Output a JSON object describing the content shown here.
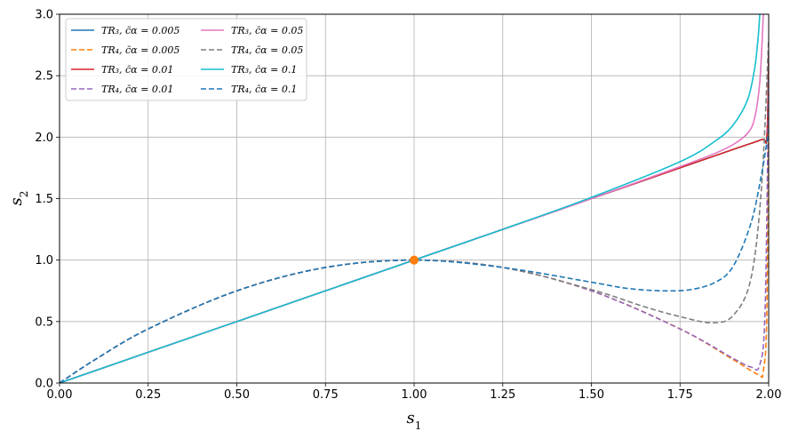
{
  "chart_data": {
    "type": "line",
    "xlabel": "s_1",
    "ylabel": "s_2",
    "xlim": [
      0.0,
      2.0
    ],
    "ylim": [
      0.0,
      3.0
    ],
    "grid": true,
    "legend_position": "top-left",
    "legend_columns": 2,
    "x_ticks": [
      "0.00",
      "0.25",
      "0.50",
      "0.75",
      "1.00",
      "1.25",
      "1.50",
      "1.75",
      "2.00"
    ],
    "y_ticks": [
      "0.0",
      "0.5",
      "1.0",
      "1.5",
      "2.0",
      "2.5",
      "3.0"
    ],
    "marker": {
      "x": 1.0,
      "y": 1.0,
      "color": "#ff7f0e"
    },
    "series": [
      {
        "name": "TR₃, c̄α = 0.005",
        "color": "#1f77b4",
        "dash": "solid",
        "x": [
          0,
          0.25,
          0.5,
          0.75,
          1.0,
          1.25,
          1.5,
          1.75,
          1.9,
          1.98,
          1.995,
          2.0
        ],
        "y": [
          0,
          0.25,
          0.5,
          0.75,
          1.0,
          1.25,
          1.5,
          1.75,
          1.9,
          1.98,
          2.0,
          2.65
        ]
      },
      {
        "name": "TR₄, c̄α = 0.005",
        "color": "#ff7f0e",
        "dash": "dashed",
        "x": [
          0,
          0.1,
          0.25,
          0.5,
          0.75,
          1.0,
          1.25,
          1.5,
          1.75,
          1.9,
          1.97,
          1.985,
          1.995,
          2.0
        ],
        "y": [
          0,
          0.19,
          0.44,
          0.75,
          0.94,
          1.0,
          0.94,
          0.75,
          0.44,
          0.19,
          0.07,
          0.1,
          0.6,
          2.6
        ]
      },
      {
        "name": "TR₃, c̄α = 0.01",
        "color": "#d62728",
        "dash": "solid",
        "x": [
          0,
          0.25,
          0.5,
          0.75,
          1.0,
          1.25,
          1.5,
          1.75,
          1.9,
          1.98,
          1.995,
          2.0
        ],
        "y": [
          0,
          0.25,
          0.5,
          0.75,
          1.0,
          1.25,
          1.5,
          1.75,
          1.9,
          1.98,
          2.01,
          2.7
        ]
      },
      {
        "name": "TR₄, c̄α = 0.01",
        "color": "#9467bd",
        "dash": "dashed",
        "x": [
          0,
          0.1,
          0.25,
          0.5,
          0.75,
          1.0,
          1.25,
          1.5,
          1.75,
          1.9,
          1.95,
          1.975,
          1.99,
          2.0
        ],
        "y": [
          0,
          0.19,
          0.44,
          0.75,
          0.94,
          1.0,
          0.94,
          0.75,
          0.44,
          0.2,
          0.13,
          0.15,
          0.6,
          2.5
        ]
      },
      {
        "name": "TR₃, c̄α = 0.05",
        "color": "#e377c2",
        "dash": "solid",
        "x": [
          0,
          0.25,
          0.5,
          0.75,
          1.0,
          1.25,
          1.5,
          1.75,
          1.85,
          1.9,
          1.94,
          1.96,
          1.975,
          1.985
        ],
        "y": [
          0,
          0.25,
          0.5,
          0.75,
          1.0,
          1.25,
          1.5,
          1.76,
          1.87,
          1.94,
          2.03,
          2.15,
          2.45,
          3.0
        ]
      },
      {
        "name": "TR₄, c̄α = 0.05",
        "color": "#7f7f7f",
        "dash": "dashed",
        "x": [
          0,
          0.1,
          0.25,
          0.5,
          0.75,
          1.0,
          1.25,
          1.5,
          1.65,
          1.75,
          1.84,
          1.9,
          1.95,
          1.98,
          2.0
        ],
        "y": [
          0,
          0.19,
          0.44,
          0.75,
          0.94,
          1.0,
          0.94,
          0.76,
          0.62,
          0.54,
          0.49,
          0.55,
          0.85,
          1.6,
          2.8
        ]
      },
      {
        "name": "TR₃, c̄α = 0.1",
        "color": "#17becf",
        "dash": "solid",
        "x": [
          0,
          0.25,
          0.5,
          0.75,
          1.0,
          1.25,
          1.5,
          1.75,
          1.85,
          1.9,
          1.94,
          1.96,
          1.97,
          1.975
        ],
        "y": [
          0,
          0.25,
          0.5,
          0.75,
          1.0,
          1.25,
          1.51,
          1.8,
          1.97,
          2.1,
          2.3,
          2.55,
          2.8,
          3.0
        ]
      },
      {
        "name": "TR₄, c̄α = 0.1",
        "color": "#1f77b4",
        "dash": "dashed",
        "x": [
          0,
          0.1,
          0.25,
          0.5,
          0.75,
          1.0,
          1.25,
          1.5,
          1.6,
          1.7,
          1.78,
          1.85,
          1.9,
          1.95,
          1.98,
          2.0
        ],
        "y": [
          0,
          0.19,
          0.44,
          0.75,
          0.94,
          1.0,
          0.94,
          0.82,
          0.77,
          0.75,
          0.76,
          0.82,
          0.95,
          1.3,
          1.7,
          2.05
        ]
      }
    ]
  }
}
